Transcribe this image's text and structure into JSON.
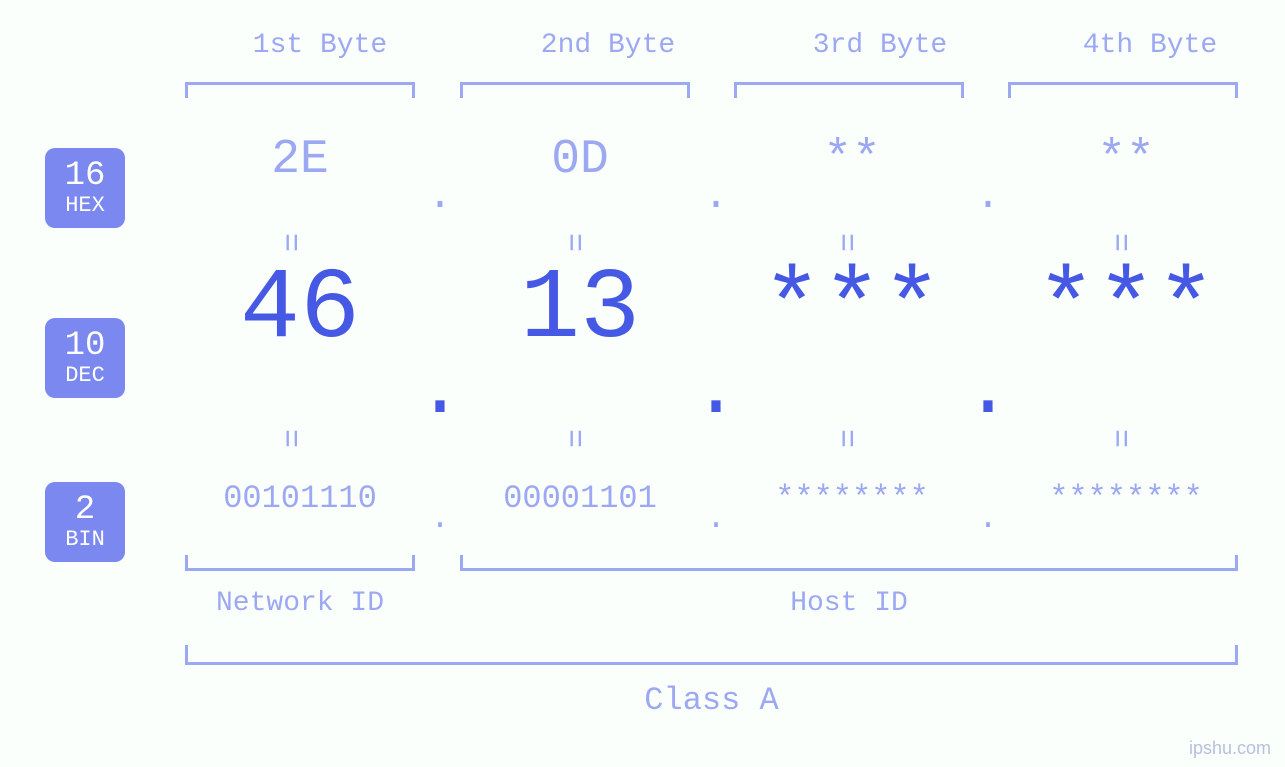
{
  "colors": {
    "background": "#fafffc",
    "primary_light": "#9da8f2",
    "primary_bold": "#4659e4",
    "badge_bg": "#7a88ef",
    "badge_text": "#ffffff",
    "watermark": "#b8c0dd"
  },
  "byte_headers": [
    "1st Byte",
    "2nd Byte",
    "3rd Byte",
    "4th Byte"
  ],
  "bases": {
    "hex": {
      "number": "16",
      "name": "HEX",
      "values": [
        "2E",
        "0D",
        "**",
        "**"
      ]
    },
    "dec": {
      "number": "10",
      "name": "DEC",
      "values": [
        "46",
        "13",
        "***",
        "***"
      ]
    },
    "bin": {
      "number": "2",
      "name": "BIN",
      "values": [
        "00101110",
        "00001101",
        "********",
        "********"
      ]
    }
  },
  "separator_dot": ".",
  "equals_symbol": "=",
  "id_section": {
    "network_label": "Network ID",
    "host_label": "Host ID"
  },
  "class_label": "Class A",
  "watermark": "ipshu.com"
}
